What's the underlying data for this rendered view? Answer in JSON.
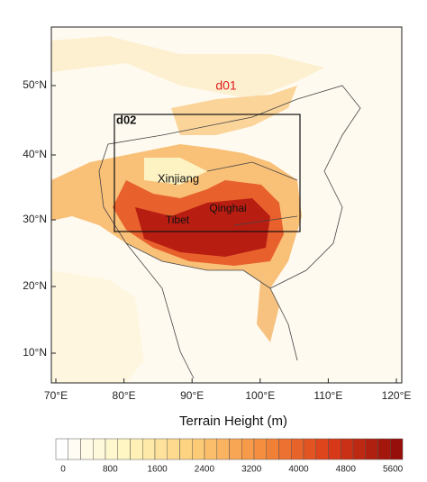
{
  "map": {
    "lat_labels": [
      "50°N",
      "40°N",
      "30°N",
      "20°N",
      "10°N"
    ],
    "lon_labels": [
      "70°E",
      "80°E",
      "90°E",
      "100°E",
      "110°E",
      "120°E"
    ],
    "domain_labels": [
      "d01",
      "d02"
    ],
    "region_labels": [
      "Xinjiang",
      "Qinghai",
      "Tibet"
    ]
  },
  "colorbar": {
    "title": "Terrain Height (m)",
    "ticks": [
      0,
      800,
      1600,
      2400,
      3200,
      4000,
      4800,
      5600
    ]
  }
}
